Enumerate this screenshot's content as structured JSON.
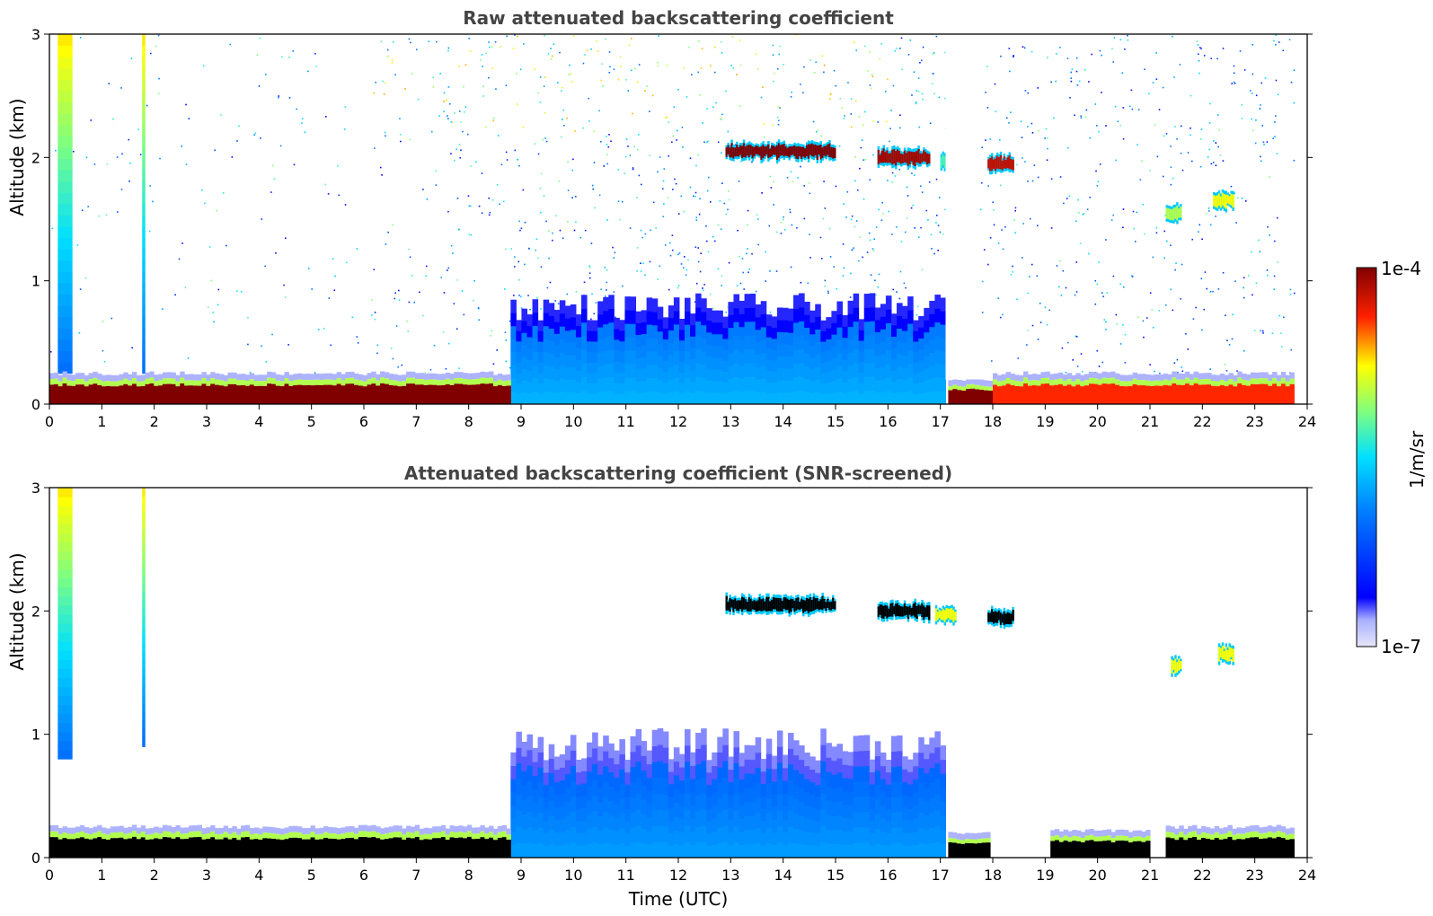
{
  "chart_data": [
    {
      "type": "heatmap",
      "title": "Raw attenuated backscattering coefficient",
      "xlabel": "",
      "ylabel": "Altitude (km)",
      "xlim": [
        0,
        24
      ],
      "ylim": [
        0,
        3
      ],
      "x_ticks": [
        "0",
        "1",
        "2",
        "3",
        "4",
        "5",
        "6",
        "7",
        "8",
        "9",
        "10",
        "11",
        "12",
        "13",
        "14",
        "15",
        "16",
        "17",
        "18",
        "19",
        "20",
        "21",
        "22",
        "23",
        "24"
      ],
      "y_ticks": [
        "0",
        "1",
        "2",
        "3"
      ],
      "data_end_time": 23.75,
      "features": {
        "surface_layer": [
          {
            "t0": 0.0,
            "t1": 8.8,
            "top_km": 0.2,
            "max_log10": -4.0
          },
          {
            "t0": 17.15,
            "t1": 18.0,
            "top_km": 0.15,
            "max_log10": -4.0
          },
          {
            "t0": 18.0,
            "t1": 23.75,
            "top_km": 0.2,
            "max_log10": -4.4
          }
        ],
        "boundary_layer": {
          "t0": 8.8,
          "t1": 17.1,
          "top_km": 0.9,
          "log10": -6.1
        },
        "clouds": [
          {
            "t0": 12.9,
            "t1": 15.0,
            "alt_km": 2.05,
            "log10": -4.0
          },
          {
            "t0": 15.8,
            "t1": 16.8,
            "alt_km": 2.0,
            "log10": -4.1
          },
          {
            "t0": 17.0,
            "t1": 17.3,
            "alt_km": 1.97,
            "log10": -5.3
          },
          {
            "t0": 17.9,
            "t1": 18.4,
            "alt_km": 1.95,
            "log10": -4.2
          },
          {
            "t0": 21.3,
            "t1": 21.6,
            "alt_km": 1.55,
            "log10": -5.0
          },
          {
            "t0": 22.2,
            "t1": 22.6,
            "alt_km": 1.65,
            "log10": -4.8
          }
        ],
        "data_gap": {
          "t0": 17.1,
          "t1": 17.75
        }
      }
    },
    {
      "type": "heatmap",
      "title": "Attenuated backscattering coefficient (SNR-screened)",
      "xlabel": "Time (UTC)",
      "ylabel": "Altitude (km)",
      "xlim": [
        0,
        24
      ],
      "ylim": [
        0,
        3
      ],
      "x_ticks": [
        "0",
        "1",
        "2",
        "3",
        "4",
        "5",
        "6",
        "7",
        "8",
        "9",
        "10",
        "11",
        "12",
        "13",
        "14",
        "15",
        "16",
        "17",
        "18",
        "19",
        "20",
        "21",
        "22",
        "23",
        "24"
      ],
      "y_ticks": [
        "0",
        "1",
        "2",
        "3"
      ],
      "data_end_time": 23.75,
      "saturated_color": "#000000",
      "features": {
        "surface_layer": [
          {
            "t0": 0.0,
            "t1": 8.8,
            "top_km": 0.2
          },
          {
            "t0": 17.15,
            "t1": 17.95,
            "top_km": 0.15
          },
          {
            "t0": 19.1,
            "t1": 21.0,
            "top_km": 0.17
          },
          {
            "t0": 21.3,
            "t1": 23.75,
            "top_km": 0.2
          }
        ],
        "boundary_layer": {
          "t0": 8.8,
          "t1": 17.1,
          "top_km": 1.05,
          "log10": -6.2
        },
        "columns": [
          {
            "t": 0.3,
            "top_km": 3.0,
            "bottom_km": 0.8
          },
          {
            "t": 1.8,
            "top_km": 3.0,
            "bottom_km": 0.9
          }
        ],
        "clouds": [
          {
            "t0": 12.9,
            "t1": 15.0,
            "alt_km": 2.05
          },
          {
            "t0": 15.8,
            "t1": 16.8,
            "alt_km": 2.0
          },
          {
            "t0": 16.9,
            "t1": 17.3,
            "alt_km": 1.97
          },
          {
            "t0": 17.9,
            "t1": 18.4,
            "alt_km": 1.95
          },
          {
            "t0": 21.4,
            "t1": 21.6,
            "alt_km": 1.55
          },
          {
            "t0": 22.3,
            "t1": 22.6,
            "alt_km": 1.65
          }
        ]
      }
    }
  ],
  "colorbar": {
    "label": "1/m/sr",
    "max_label": "1e-4",
    "min_label": "1e-7",
    "scale": "log",
    "range": [
      -7,
      -4
    ],
    "colormap": "jet",
    "colors": {
      "low_lavender": "#e6e6fa",
      "blue": "#0000ff",
      "cyan": "#00ffff",
      "green": "#7fff7f",
      "yellow": "#ffff00",
      "red": "#ff0000",
      "dark_red": "#800000"
    }
  }
}
